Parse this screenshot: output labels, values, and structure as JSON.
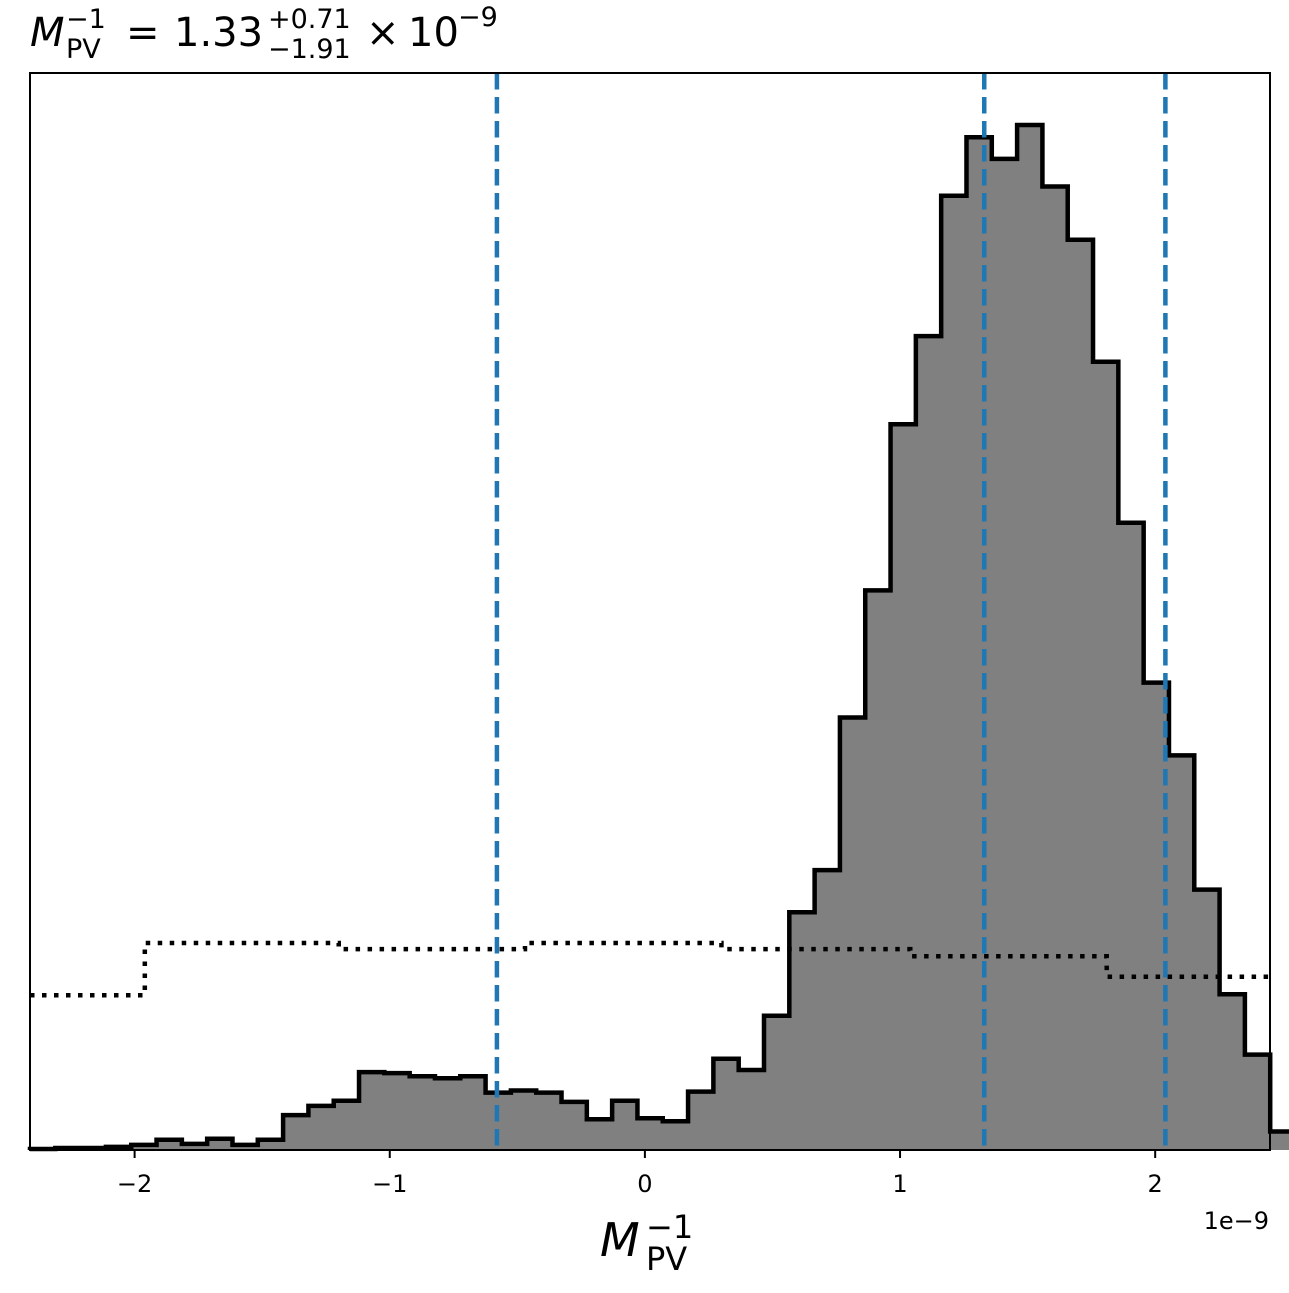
{
  "chart_data": {
    "type": "histogram",
    "title": {
      "symbol": "M",
      "symbol_sub": "PV",
      "symbol_sup": "−1",
      "equals": "=",
      "value": "1.33",
      "upper_err": "+0.71",
      "lower_err": "−1.91",
      "times": "×",
      "base": "10",
      "exponent": "−9"
    },
    "xlabel": {
      "symbol": "M",
      "sub": "PV",
      "sup": "−1"
    },
    "x_offset_label": "1e−9",
    "xlim": [
      -2.41,
      2.45
    ],
    "ylim": [
      0,
      1.0
    ],
    "grid": false,
    "xticks": [
      {
        "value": -2,
        "label": "−2"
      },
      {
        "value": -1,
        "label": "−1"
      },
      {
        "value": 0,
        "label": "0"
      },
      {
        "value": 1,
        "label": "1"
      },
      {
        "value": 2,
        "label": "2"
      }
    ],
    "units_scale": "1e-9",
    "histogram": {
      "fill_color": "#808080",
      "edge_color": "#000000",
      "bin_start": -2.41,
      "bin_width": 0.0992,
      "heights": [
        0.001,
        0.002,
        0.002,
        0.003,
        0.005,
        0.01,
        0.006,
        0.011,
        0.005,
        0.01,
        0.034,
        0.043,
        0.048,
        0.076,
        0.075,
        0.072,
        0.07,
        0.072,
        0.056,
        0.058,
        0.056,
        0.047,
        0.03,
        0.048,
        0.031,
        0.028,
        0.057,
        0.089,
        0.078,
        0.131,
        0.232,
        0.273,
        0.422,
        0.546,
        0.708,
        0.794,
        0.931,
        0.988,
        0.967,
        1.0,
        0.94,
        0.888,
        0.769,
        0.612,
        0.456,
        0.385,
        0.254,
        0.152,
        0.093,
        0.018
      ]
    },
    "prior": {
      "style": "dotted",
      "color": "#000000",
      "steps": [
        {
          "x0": -2.41,
          "x1": -1.96,
          "y": 0.151
        },
        {
          "x0": -1.96,
          "x1": -1.2,
          "y": 0.202
        },
        {
          "x0": -1.2,
          "x1": -0.47,
          "y": 0.196
        },
        {
          "x0": -0.47,
          "x1": 0.3,
          "y": 0.202
        },
        {
          "x0": 0.3,
          "x1": 1.04,
          "y": 0.196
        },
        {
          "x0": 1.04,
          "x1": 1.81,
          "y": 0.189
        },
        {
          "x0": 1.81,
          "x1": 2.45,
          "y": 0.169
        }
      ]
    },
    "quantile_lines": {
      "color": "#1f77b4",
      "style": "dashed",
      "values": [
        -0.58,
        1.33,
        2.04
      ]
    }
  }
}
